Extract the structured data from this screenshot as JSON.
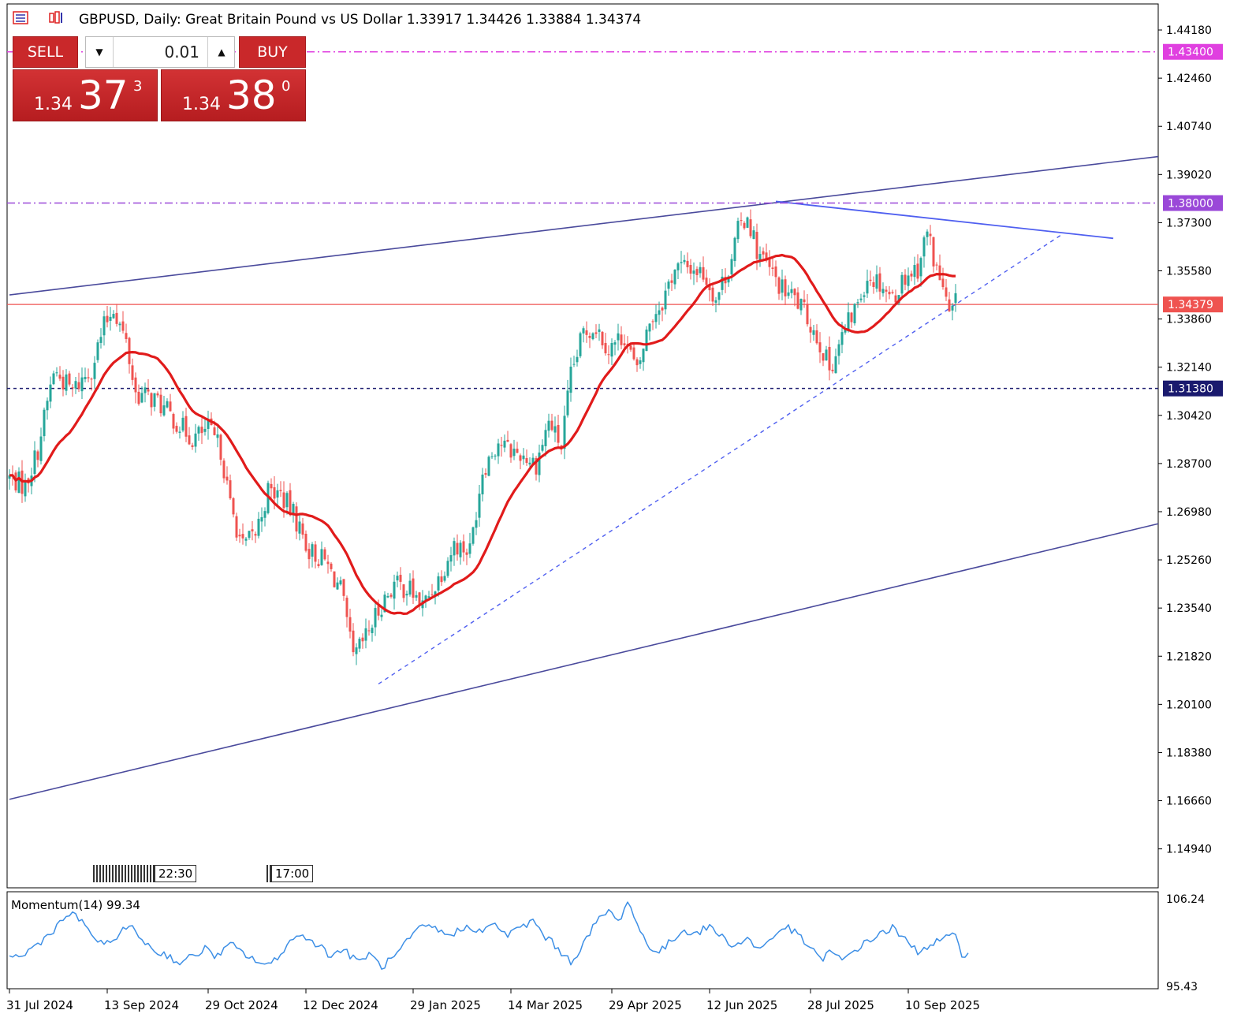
{
  "header": {
    "symbol_line": "GBPUSD, Daily:  Great Britain Pound vs US Dollar  1.33917 1.34426 1.33884 1.34374"
  },
  "trade_panel": {
    "sell_label": "SELL",
    "buy_label": "BUY",
    "lot_value": "0.01",
    "sell_price_small": "1.34",
    "sell_price_big": "37",
    "sell_price_sup": "3",
    "buy_price_small": "1.34",
    "buy_price_big": "38",
    "buy_price_sup": "0"
  },
  "time_markers": [
    "22:30",
    "17:00"
  ],
  "momentum": {
    "label": "Momentum(14) 99.34",
    "axis_top": "106.24",
    "axis_bottom": "95.43"
  },
  "colors": {
    "bull": "#26a69a",
    "bear": "#ef5350",
    "ma": "#e11b1b",
    "channel": "#4a4a9c",
    "trend_dash": "#4f5ff0",
    "level_1434": "#e040e0",
    "level_1380": "#9a48d8",
    "level_1313": "#1a1a6e",
    "current": "#ef5350",
    "momentum": "#3d8fe6"
  },
  "chart_data": [
    {
      "type": "candlestick",
      "title": "GBPUSD, Daily",
      "ylim": [
        1.1355,
        1.4511
      ],
      "y_ticks": [
        "1.44180",
        "1.42460",
        "1.40740",
        "1.39020",
        "1.37300",
        "1.35580",
        "1.33860",
        "1.32140",
        "1.30420",
        "1.28700",
        "1.26980",
        "1.25260",
        "1.23540",
        "1.21820",
        "1.20100",
        "1.18380",
        "1.16660",
        "1.14940"
      ],
      "x_tick_labels": [
        "31 Jul 2024",
        "13 Sep 2024",
        "29 Oct 2024",
        "12 Dec 2024",
        "29 Jan 2025",
        "14 Mar 2025",
        "29 Apr 2025",
        "12 Jun 2025",
        "28 Jul 2025",
        "10 Sep 2025"
      ],
      "x_tick_index": [
        0,
        31,
        63,
        94,
        128,
        159,
        191,
        222,
        254,
        285
      ],
      "ohlc": "generated from close series below",
      "close_anchors": [
        [
          0,
          1.282
        ],
        [
          5,
          1.279
        ],
        [
          9,
          1.292
        ],
        [
          14,
          1.32
        ],
        [
          20,
          1.313
        ],
        [
          26,
          1.321
        ],
        [
          30,
          1.336
        ],
        [
          33,
          1.343
        ],
        [
          37,
          1.33
        ],
        [
          40,
          1.312
        ],
        [
          46,
          1.31
        ],
        [
          52,
          1.303
        ],
        [
          58,
          1.296
        ],
        [
          63,
          1.299
        ],
        [
          67,
          1.292
        ],
        [
          70,
          1.272
        ],
        [
          74,
          1.257
        ],
        [
          78,
          1.262
        ],
        [
          82,
          1.277
        ],
        [
          86,
          1.276
        ],
        [
          90,
          1.269
        ],
        [
          95,
          1.256
        ],
        [
          100,
          1.252
        ],
        [
          105,
          1.242
        ],
        [
          109,
          1.217
        ],
        [
          113,
          1.225
        ],
        [
          118,
          1.237
        ],
        [
          122,
          1.244
        ],
        [
          127,
          1.242
        ],
        [
          131,
          1.236
        ],
        [
          136,
          1.246
        ],
        [
          141,
          1.258
        ],
        [
          146,
          1.256
        ],
        [
          150,
          1.285
        ],
        [
          155,
          1.295
        ],
        [
          158,
          1.292
        ],
        [
          163,
          1.29
        ],
        [
          167,
          1.287
        ],
        [
          171,
          1.302
        ],
        [
          175,
          1.293
        ],
        [
          178,
          1.318
        ],
        [
          182,
          1.334
        ],
        [
          186,
          1.336
        ],
        [
          190,
          1.328
        ],
        [
          195,
          1.333
        ],
        [
          199,
          1.319
        ],
        [
          203,
          1.338
        ],
        [
          207,
          1.345
        ],
        [
          211,
          1.357
        ],
        [
          216,
          1.357
        ],
        [
          220,
          1.355
        ],
        [
          224,
          1.346
        ],
        [
          228,
          1.357
        ],
        [
          231,
          1.37
        ],
        [
          234,
          1.376
        ],
        [
          237,
          1.363
        ],
        [
          241,
          1.356
        ],
        [
          245,
          1.349
        ],
        [
          249,
          1.346
        ],
        [
          253,
          1.339
        ],
        [
          257,
          1.33
        ],
        [
          260,
          1.321
        ],
        [
          264,
          1.332
        ],
        [
          268,
          1.342
        ],
        [
          272,
          1.354
        ],
        [
          276,
          1.352
        ],
        [
          280,
          1.346
        ],
        [
          284,
          1.354
        ],
        [
          288,
          1.357
        ],
        [
          291,
          1.37
        ],
        [
          294,
          1.356
        ],
        [
          296,
          1.35
        ],
        [
          298,
          1.339
        ],
        [
          300,
          1.344
        ]
      ],
      "ma_label": "MA",
      "horizontal_levels": [
        {
          "price": 1.434,
          "label": "1.43400"
        },
        {
          "price": 1.38,
          "label": "1.38000"
        },
        {
          "price": 1.34379,
          "label": "1.34379"
        },
        {
          "price": 1.3138,
          "label": "1.31380"
        }
      ],
      "trendlines": [
        {
          "name": "channel-upper",
          "p1": [
            0,
            1.3472
          ],
          "p2": [
            374,
            1.3966
          ]
        },
        {
          "name": "channel-lower",
          "p1": [
            0,
            1.1671
          ],
          "p2": [
            374,
            1.2655
          ]
        },
        {
          "name": "resistance",
          "p1": [
            243,
            1.3806
          ],
          "p2": [
            350,
            1.3674
          ]
        },
        {
          "name": "support-dashed",
          "p1": [
            117,
            1.2083
          ],
          "p2": [
            334,
            1.369
          ]
        }
      ]
    },
    {
      "type": "line",
      "title": "Momentum(14) 99.34",
      "ylim": [
        95.43,
        106.24
      ],
      "series": [
        {
          "name": "Momentum(14)",
          "anchors": [
            [
              0,
              99.4
            ],
            [
              3,
              98.8
            ],
            [
              7,
              99.9
            ],
            [
              11,
              101.0
            ],
            [
              15,
              102.4
            ],
            [
              19,
              103.8
            ],
            [
              22,
              103.2
            ],
            [
              26,
              101.6
            ],
            [
              30,
              100.0
            ],
            [
              34,
              101.4
            ],
            [
              38,
              102.4
            ],
            [
              42,
              101.0
            ],
            [
              46,
              99.6
            ],
            [
              50,
              99.2
            ],
            [
              54,
              98.3
            ],
            [
              58,
              99.0
            ],
            [
              62,
              99.9
            ],
            [
              66,
              99.0
            ],
            [
              70,
              100.4
            ],
            [
              74,
              99.4
            ],
            [
              78,
              98.6
            ],
            [
              82,
              97.9
            ],
            [
              86,
              99.4
            ],
            [
              90,
              101.1
            ],
            [
              94,
              101.3
            ],
            [
              98,
              100.3
            ],
            [
              102,
              99.1
            ],
            [
              106,
              99.9
            ],
            [
              110,
              98.4
            ],
            [
              114,
              99.3
            ],
            [
              118,
              97.9
            ],
            [
              122,
              98.9
            ],
            [
              126,
              100.6
            ],
            [
              130,
              102.1
            ],
            [
              134,
              102.4
            ],
            [
              138,
              101.4
            ],
            [
              142,
              101.8
            ],
            [
              146,
              102.4
            ],
            [
              150,
              101.8
            ],
            [
              154,
              102.6
            ],
            [
              158,
              101.4
            ],
            [
              162,
              102.2
            ],
            [
              166,
              103.0
            ],
            [
              170,
              101.2
            ],
            [
              174,
              99.9
            ],
            [
              178,
              98.4
            ],
            [
              182,
              100.4
            ],
            [
              186,
              102.8
            ],
            [
              190,
              104.2
            ],
            [
              193,
              102.8
            ],
            [
              196,
              105.3
            ],
            [
              199,
              102.6
            ],
            [
              202,
              100.5
            ],
            [
              206,
              99.4
            ],
            [
              210,
              100.8
            ],
            [
              214,
              102.0
            ],
            [
              218,
              101.6
            ],
            [
              222,
              102.4
            ],
            [
              226,
              101.2
            ],
            [
              230,
              100.2
            ],
            [
              234,
              101.0
            ],
            [
              238,
              99.8
            ],
            [
              242,
              101.2
            ],
            [
              246,
              102.4
            ],
            [
              250,
              101.4
            ],
            [
              254,
              100.0
            ],
            [
              257,
              98.6
            ],
            [
              260,
              99.6
            ],
            [
              264,
              98.5
            ],
            [
              268,
              99.8
            ],
            [
              272,
              100.6
            ],
            [
              276,
              101.6
            ],
            [
              280,
              102.2
            ],
            [
              284,
              100.8
            ],
            [
              288,
              99.6
            ],
            [
              292,
              100.4
            ],
            [
              296,
              100.9
            ],
            [
              300,
              101.3
            ],
            [
              302,
              99.4
            ],
            [
              304,
              99.34
            ]
          ]
        }
      ]
    }
  ]
}
